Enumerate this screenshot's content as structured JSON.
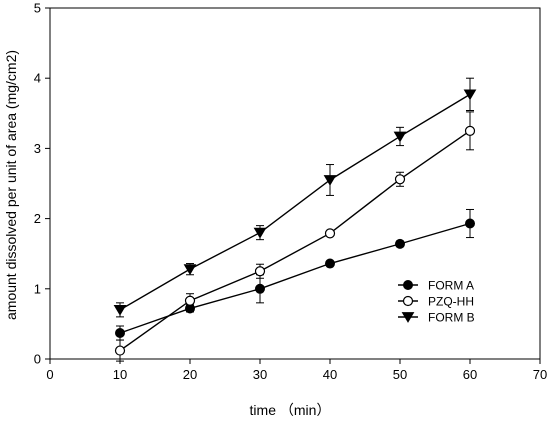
{
  "chart_data": {
    "type": "line",
    "title": "",
    "xlabel": "time （min）",
    "ylabel": "amount dissolved per unit of area (mg/cm2)",
    "xlim": [
      0,
      70
    ],
    "ylim": [
      0,
      5
    ],
    "x_ticks": [
      0,
      10,
      20,
      30,
      40,
      50,
      60,
      70
    ],
    "y_ticks": [
      0,
      1,
      2,
      3,
      4,
      5
    ],
    "x": [
      10,
      20,
      30,
      40,
      50,
      60
    ],
    "grid": false,
    "legend_position": "lower-right",
    "series": [
      {
        "name": "FORM A",
        "marker": "filled-circle",
        "values": [
          0.37,
          0.72,
          1.0,
          1.36,
          1.64,
          1.93
        ],
        "errors": [
          0.1,
          0.05,
          0.2,
          0.03,
          0.04,
          0.2
        ]
      },
      {
        "name": "PZQ-HH",
        "marker": "open-circle",
        "values": [
          0.12,
          0.83,
          1.25,
          1.79,
          2.56,
          3.25
        ],
        "errors": [
          0.15,
          0.1,
          0.1,
          0.03,
          0.1,
          0.27
        ]
      },
      {
        "name": "FORM B",
        "marker": "filled-triangle-down",
        "values": [
          0.7,
          1.28,
          1.8,
          2.55,
          3.17,
          3.77
        ],
        "errors": [
          0.1,
          0.08,
          0.1,
          0.22,
          0.13,
          0.23
        ]
      }
    ]
  }
}
